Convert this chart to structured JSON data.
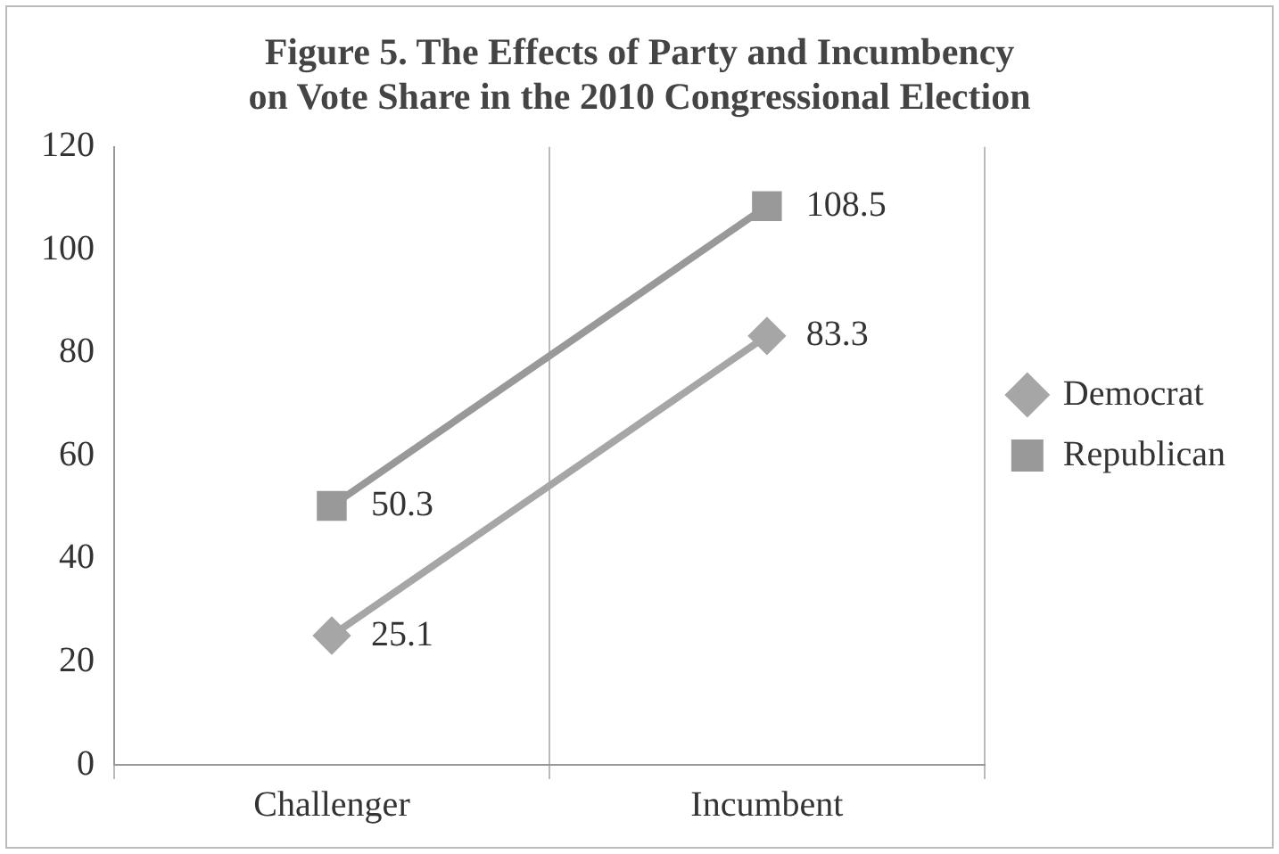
{
  "chart_data": {
    "type": "line",
    "title": "Figure 5. The Effects of Party and Incumbency\non Vote Share in the 2010 Congressional Election",
    "categories": [
      "Challenger",
      "Incumbent"
    ],
    "series": [
      {
        "name": "Democrat",
        "color": "#a6a6a6",
        "values": [
          25.1,
          83.3
        ],
        "marker": "diamond"
      },
      {
        "name": "Republican",
        "color": "#999999",
        "values": [
          50.3,
          108.5
        ],
        "marker": "square"
      }
    ],
    "ylim": [
      0,
      120
    ],
    "yticks": [
      0,
      20,
      40,
      60,
      80,
      100,
      120
    ],
    "grid": "x",
    "legend": "right",
    "data_labels": true,
    "line_style": "solid"
  }
}
